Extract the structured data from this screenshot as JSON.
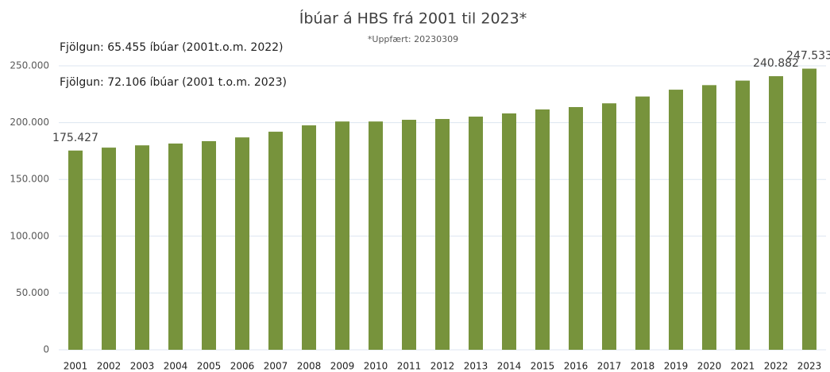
{
  "chart_data": {
    "type": "bar",
    "title": "Íbúar á HBS frá 2001 til 2023*",
    "subtitle": "*Uppfært: 20230309",
    "annotations": [
      "Fjölgun: 65.455 íbúar (2001t.o.m. 2022)",
      "Fjölgun: 72.106 íbúar (2001 t.o.m. 2023)"
    ],
    "categories": [
      "2001",
      "2002",
      "2003",
      "2004",
      "2005",
      "2006",
      "2007",
      "2008",
      "2009",
      "2010",
      "2011",
      "2012",
      "2013",
      "2014",
      "2015",
      "2016",
      "2017",
      "2018",
      "2019",
      "2020",
      "2021",
      "2022",
      "2023"
    ],
    "values": [
      175427,
      178000,
      180000,
      181600,
      183700,
      187000,
      192000,
      197600,
      201000,
      201000,
      202500,
      203200,
      205300,
      208100,
      211600,
      213700,
      217000,
      223000,
      229000,
      233000,
      237000,
      240882,
      247533
    ],
    "value_labels": [
      "175.427",
      null,
      null,
      null,
      null,
      null,
      null,
      null,
      null,
      null,
      null,
      null,
      null,
      null,
      null,
      null,
      null,
      null,
      null,
      null,
      null,
      "240.882",
      "247.533"
    ],
    "color": "#77933c",
    "ylim": [
      0,
      250000
    ],
    "yticks": [
      0,
      {
        "value": 50000,
        "label": "50.000"
      },
      {
        "value": 100000,
        "label": "100.000"
      },
      {
        "value": 150000,
        "label": "150.000"
      },
      {
        "value": 200000,
        "label": "200.000"
      },
      {
        "value": 250000,
        "label": "250.000"
      }
    ],
    "grid": true
  }
}
